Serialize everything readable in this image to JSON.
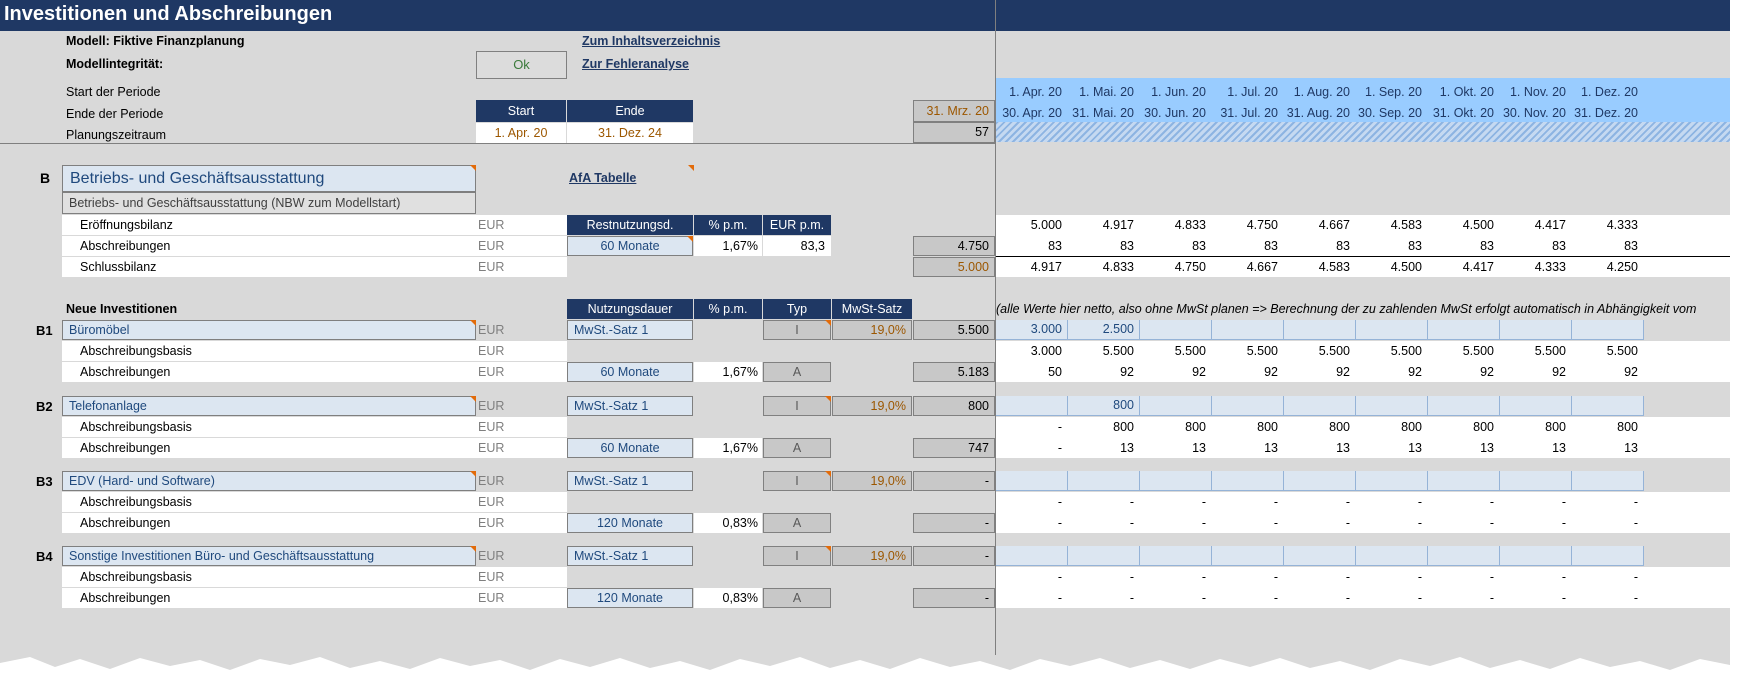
{
  "title": "Investitionen und Abschreibungen",
  "model": {
    "label": "Modell: Fiktive Finanzplanung",
    "integrity_label": "Modellintegrität:",
    "integrity_status": "Ok"
  },
  "links": {
    "toc": "Zum Inhaltsverzeichnis",
    "errors": "Zur Fehleranalyse",
    "afa": "AfA Tabelle"
  },
  "period": {
    "start_label": "Start der Periode",
    "end_label": "Ende der Periode",
    "planning_label": "Planungszeitraum",
    "start_header": "Start",
    "end_header": "Ende",
    "start_value": "1. Apr. 20",
    "end_value": "31. Dez. 24",
    "prev_end": "31. Mrz. 20",
    "count": "57",
    "start_dates": [
      "1. Apr. 20",
      "1. Mai. 20",
      "1. Jun. 20",
      "1. Jul. 20",
      "1. Aug. 20",
      "1. Sep. 20",
      "1. Okt. 20",
      "1. Nov. 20",
      "1. Dez. 20"
    ],
    "end_dates": [
      "30. Apr. 20",
      "31. Mai. 20",
      "30. Jun. 20",
      "31. Jul. 20",
      "31. Aug. 20",
      "30. Sep. 20",
      "31. Okt. 20",
      "30. Nov. 20",
      "31. Dez. 20"
    ]
  },
  "section_b": {
    "letter": "B",
    "title": "Betriebs- und Geschäftsausstattung",
    "subtitle": "Betriebs- und Geschäftsausstattung (NBW zum Modellstart)",
    "headers": {
      "rest": "Restnutzungsd.",
      "pct": "% p.m.",
      "eur": "EUR p.m."
    },
    "rows": {
      "opening": "Eröffnungsbilanz",
      "depr": "Abschreibungen",
      "closing": "Schlussbilanz"
    },
    "currency": "EUR",
    "rest_value": "60 Monate",
    "pct_value": "1,67%",
    "eur_value": "83,3",
    "depr_total": "4.750",
    "closing_start": "5.000",
    "opening_values": [
      "5.000",
      "4.917",
      "4.833",
      "4.750",
      "4.667",
      "4.583",
      "4.500",
      "4.417",
      "4.333"
    ],
    "depr_values": [
      "83",
      "83",
      "83",
      "83",
      "83",
      "83",
      "83",
      "83",
      "83"
    ],
    "closing_values": [
      "4.917",
      "4.833",
      "4.750",
      "4.667",
      "4.583",
      "4.500",
      "4.417",
      "4.333",
      "4.250"
    ]
  },
  "new_inv": {
    "label": "Neue Investitionen",
    "headers": {
      "duration": "Nutzungsdauer",
      "pct": "% p.m.",
      "type": "Typ",
      "vat": "MwSt-Satz"
    },
    "note": "(alle Werte hier netto, also ohne MwSt planen => Berechnung der zu zahlenden MwSt erfolgt automatisch in Abhängigkeit vom",
    "basis_label": "Abschreibungsbasis",
    "depr_label": "Abschreibungen",
    "items": [
      {
        "letter": "B1",
        "name": "Büromöbel",
        "vat_label": "MwSt.-Satz 1",
        "type_i": "I",
        "vat": "19,0%",
        "total": "5.500",
        "duration": "60 Monate",
        "pct": "1,67%",
        "type_a": "A",
        "depr_total": "5.183",
        "inv_values": [
          "3.000",
          "2.500",
          "",
          "",
          "",
          "",
          "",
          "",
          ""
        ],
        "basis_values": [
          "3.000",
          "5.500",
          "5.500",
          "5.500",
          "5.500",
          "5.500",
          "5.500",
          "5.500",
          "5.500"
        ],
        "depr_values": [
          "50",
          "92",
          "92",
          "92",
          "92",
          "92",
          "92",
          "92",
          "92"
        ]
      },
      {
        "letter": "B2",
        "name": "Telefonanlage",
        "vat_label": "MwSt.-Satz 1",
        "type_i": "I",
        "vat": "19,0%",
        "total": "800",
        "duration": "60 Monate",
        "pct": "1,67%",
        "type_a": "A",
        "depr_total": "747",
        "inv_values": [
          "",
          "800",
          "",
          "",
          "",
          "",
          "",
          "",
          ""
        ],
        "basis_values": [
          "-",
          "800",
          "800",
          "800",
          "800",
          "800",
          "800",
          "800",
          "800"
        ],
        "depr_values": [
          "-",
          "13",
          "13",
          "13",
          "13",
          "13",
          "13",
          "13",
          "13"
        ]
      },
      {
        "letter": "B3",
        "name": "EDV (Hard- und Software)",
        "vat_label": "MwSt.-Satz 1",
        "type_i": "I",
        "vat": "19,0%",
        "total": "-",
        "duration": "120 Monate",
        "pct": "0,83%",
        "type_a": "A",
        "depr_total": "-",
        "inv_values": [
          "",
          "",
          "",
          "",
          "",
          "",
          "",
          "",
          ""
        ],
        "basis_values": [
          "-",
          "-",
          "-",
          "-",
          "-",
          "-",
          "-",
          "-",
          "-"
        ],
        "depr_values": [
          "-",
          "-",
          "-",
          "-",
          "-",
          "-",
          "-",
          "-",
          "-"
        ]
      },
      {
        "letter": "B4",
        "name": "Sonstige Investitionen Büro- und Geschäftsausstattung",
        "vat_label": "MwSt.-Satz 1",
        "type_i": "I",
        "vat": "19,0%",
        "total": "-",
        "duration": "120 Monate",
        "pct": "0,83%",
        "type_a": "A",
        "depr_total": "-",
        "inv_values": [
          "",
          "",
          "",
          "",
          "",
          "",
          "",
          "",
          ""
        ],
        "basis_values": [
          "-",
          "-",
          "-",
          "-",
          "-",
          "-",
          "-",
          "-",
          "-"
        ],
        "depr_values": [
          "-",
          "-",
          "-",
          "-",
          "-",
          "-",
          "-",
          "-",
          "-"
        ]
      }
    ]
  },
  "colors": {
    "navy": "#1f3864",
    "header_blue": "#99ccff",
    "input_blue": "#dce6f1",
    "vat_brown": "#9c5700"
  }
}
